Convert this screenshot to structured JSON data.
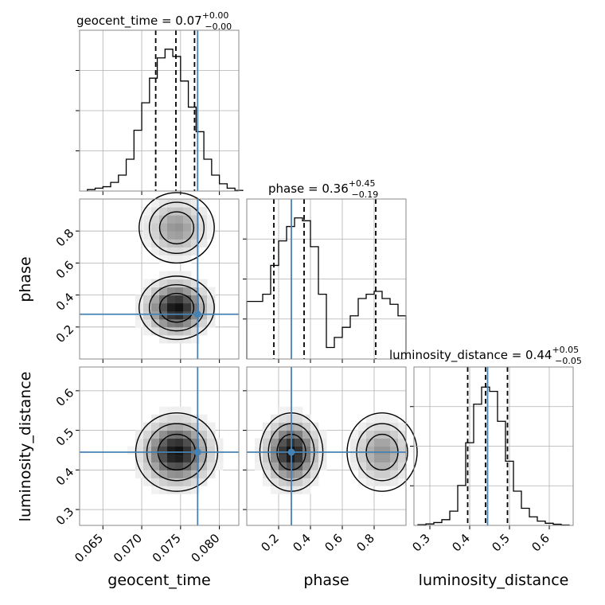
{
  "chart_data": {
    "type": "corner",
    "parameters": [
      "geocent_time",
      "phase",
      "luminosity_distance"
    ],
    "ranges": {
      "geocent_time": [
        0.062,
        0.0825
      ],
      "phase": [
        0.0,
        1.0
      ],
      "luminosity_distance": [
        0.26,
        0.66
      ]
    },
    "truths": {
      "geocent_time": 0.0772,
      "phase": 0.28,
      "luminosity_distance": 0.445
    },
    "titles": [
      {
        "param": "geocent_time",
        "text": "geocent_time = 0.07",
        "plus": "+0.00",
        "minus": "−0.00",
        "quantiles": [
          0.0718,
          0.0744,
          0.0768
        ]
      },
      {
        "param": "phase",
        "text": "phase = 0.36",
        "plus": "+0.45",
        "minus": "−0.19",
        "quantiles": [
          0.17,
          0.36,
          0.81
        ]
      },
      {
        "param": "luminosity_distance",
        "text": "luminosity_distance = 0.44",
        "plus": "+0.05",
        "minus": "−0.05",
        "quantiles": [
          0.395,
          0.44,
          0.495
        ]
      }
    ],
    "axis_labels": {
      "x": [
        "geocent_time",
        "phase",
        "luminosity_distance"
      ],
      "y": [
        "phase",
        "luminosity_distance"
      ]
    },
    "ticks": {
      "geocent_time": [
        "0.065",
        "0.070",
        "0.075",
        "0.080"
      ],
      "phase": [
        "0.2",
        "0.4",
        "0.6",
        "0.8"
      ],
      "luminosity_distance": [
        "0.3",
        "0.4",
        "0.5",
        "0.6"
      ]
    },
    "histograms": {
      "geocent_time": {
        "bins": [
          0.063,
          0.064,
          0.065,
          0.066,
          0.067,
          0.068,
          0.069,
          0.07,
          0.071,
          0.072,
          0.073,
          0.074,
          0.075,
          0.076,
          0.077,
          0.078,
          0.079,
          0.08,
          0.081,
          0.082
        ],
        "counts": [
          0.01,
          0.02,
          0.03,
          0.06,
          0.11,
          0.22,
          0.42,
          0.61,
          0.78,
          0.92,
          0.98,
          0.93,
          0.76,
          0.58,
          0.41,
          0.22,
          0.11,
          0.05,
          0.02,
          0.005
        ]
      },
      "phase": {
        "bins": [
          0.0,
          0.05,
          0.1,
          0.15,
          0.2,
          0.25,
          0.3,
          0.35,
          0.4,
          0.45,
          0.5,
          0.55,
          0.6,
          0.65,
          0.7,
          0.75,
          0.8,
          0.85,
          0.9,
          0.95
        ],
        "counts": [
          0.4,
          0.4,
          0.45,
          0.65,
          0.82,
          0.92,
          0.98,
          0.96,
          0.78,
          0.45,
          0.08,
          0.15,
          0.22,
          0.3,
          0.42,
          0.45,
          0.47,
          0.42,
          0.38,
          0.3
        ]
      },
      "luminosity_distance": {
        "bins": [
          0.27,
          0.29,
          0.31,
          0.33,
          0.35,
          0.37,
          0.39,
          0.41,
          0.43,
          0.45,
          0.47,
          0.49,
          0.51,
          0.53,
          0.55,
          0.57,
          0.59,
          0.61,
          0.63
        ],
        "counts": [
          0.005,
          0.01,
          0.02,
          0.04,
          0.1,
          0.28,
          0.58,
          0.85,
          0.97,
          0.94,
          0.73,
          0.45,
          0.24,
          0.12,
          0.06,
          0.03,
          0.015,
          0.008,
          0.003
        ]
      }
    },
    "density_2d": [
      {
        "x": "geocent_time",
        "y": "phase",
        "modes": [
          {
            "x": 0.0745,
            "y": 0.32,
            "sx": 0.0022,
            "sy": 0.09,
            "w": 1.0
          },
          {
            "x": 0.0745,
            "y": 0.82,
            "sx": 0.0022,
            "sy": 0.1,
            "w": 0.45
          }
        ]
      },
      {
        "x": "geocent_time",
        "y": "luminosity_distance",
        "modes": [
          {
            "x": 0.0745,
            "y": 0.445,
            "sx": 0.0024,
            "sy": 0.045,
            "w": 1.0
          }
        ]
      },
      {
        "x": "phase",
        "y": "luminosity_distance",
        "modes": [
          {
            "x": 0.28,
            "y": 0.445,
            "sx": 0.09,
            "sy": 0.045,
            "w": 1.0
          },
          {
            "x": 0.85,
            "y": 0.445,
            "sx": 0.1,
            "sy": 0.045,
            "w": 0.45
          }
        ]
      }
    ],
    "colors": {
      "truth": "#4682b4",
      "hist": "#000000",
      "grid": "#b0b0b0"
    },
    "grid": true
  }
}
